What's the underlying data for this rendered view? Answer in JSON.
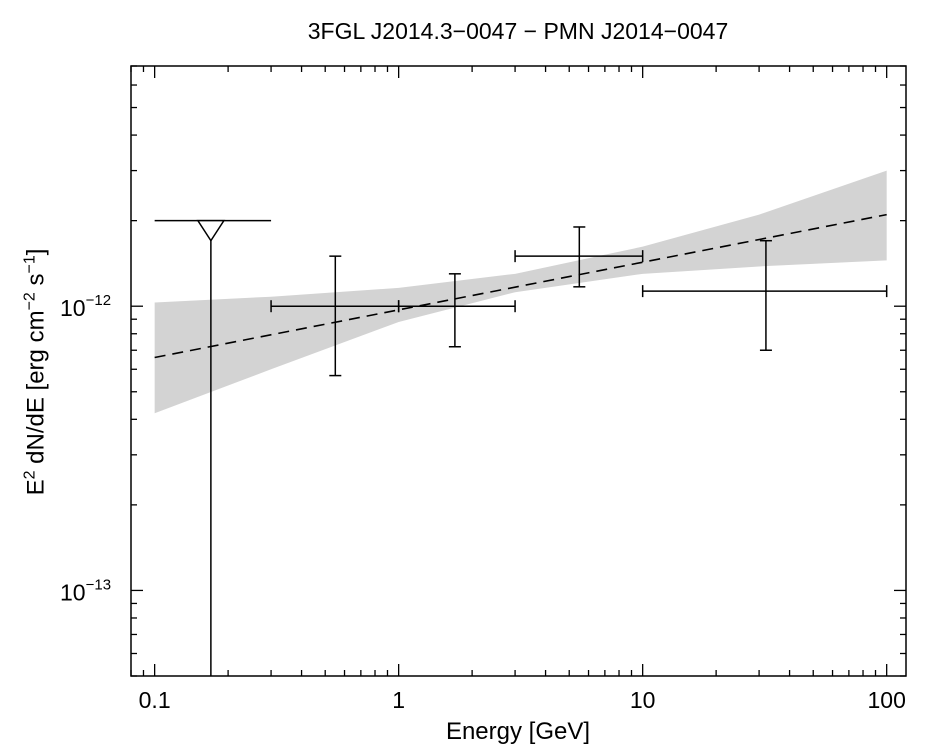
{
  "chart_data": {
    "type": "scatter",
    "title": "3FGL J2014.3−0047 − PMN J2014−0047",
    "xlabel": "Energy [GeV]",
    "ylabel": {
      "prefix": "E",
      "prefix_sup": "2",
      "middle": " dN/dE [erg cm",
      "cm_sup": "−2",
      "s_text": " s",
      "s_sup": "−1",
      "suffix": "]"
    },
    "x_scale": "log",
    "y_scale": "log",
    "xlim": [
      0.08,
      120
    ],
    "ylim": [
      5e-14,
      7e-12
    ],
    "x_ticks": [
      {
        "value": 0.1,
        "label": "0.1"
      },
      {
        "value": 1,
        "label": "1"
      },
      {
        "value": 10,
        "label": "10"
      },
      {
        "value": 100,
        "label": "100"
      }
    ],
    "y_ticks": [
      {
        "value": 1e-13,
        "base": "10",
        "exp": "−13"
      },
      {
        "value": 1e-12,
        "base": "10",
        "exp": "−12"
      }
    ],
    "grid": false,
    "legend": "none",
    "colors": {
      "band": "#d3d3d3",
      "points": "#000000",
      "model": "#000000"
    },
    "model_line": {
      "style": "dashed",
      "x": [
        0.1,
        100
      ],
      "y": [
        6.6e-13,
        2.1e-12
      ]
    },
    "confidence_band": {
      "x": [
        0.1,
        0.3,
        1,
        3,
        10,
        30,
        100
      ],
      "upper": [
        1.03e-12,
        1.08e-12,
        1.16e-12,
        1.3e-12,
        1.62e-12,
        2.1e-12,
        3e-12
      ],
      "lower": [
        4.2e-13,
        6e-13,
        8.8e-13,
        1.12e-12,
        1.3e-12,
        1.38e-12,
        1.45e-12
      ]
    },
    "points": [
      {
        "x": 0.55,
        "x_lo": 0.3,
        "x_hi": 1.0,
        "y": 1e-12,
        "y_lo": 5.7e-13,
        "y_hi": 1.5e-12
      },
      {
        "x": 1.7,
        "x_lo": 1.0,
        "x_hi": 3.0,
        "y": 1e-12,
        "y_lo": 7.2e-13,
        "y_hi": 1.3e-12
      },
      {
        "x": 5.5,
        "x_lo": 3.0,
        "x_hi": 10.0,
        "y": 1.5e-12,
        "y_lo": 1.17e-12,
        "y_hi": 1.9e-12
      },
      {
        "x": 32,
        "x_lo": 10.0,
        "x_hi": 100.0,
        "y": 1.13e-12,
        "y_lo": 7e-13,
        "y_hi": 1.7e-12
      }
    ],
    "upper_limits": [
      {
        "x": 0.17,
        "x_lo": 0.1,
        "x_hi": 0.3,
        "y": 2e-12
      }
    ]
  }
}
